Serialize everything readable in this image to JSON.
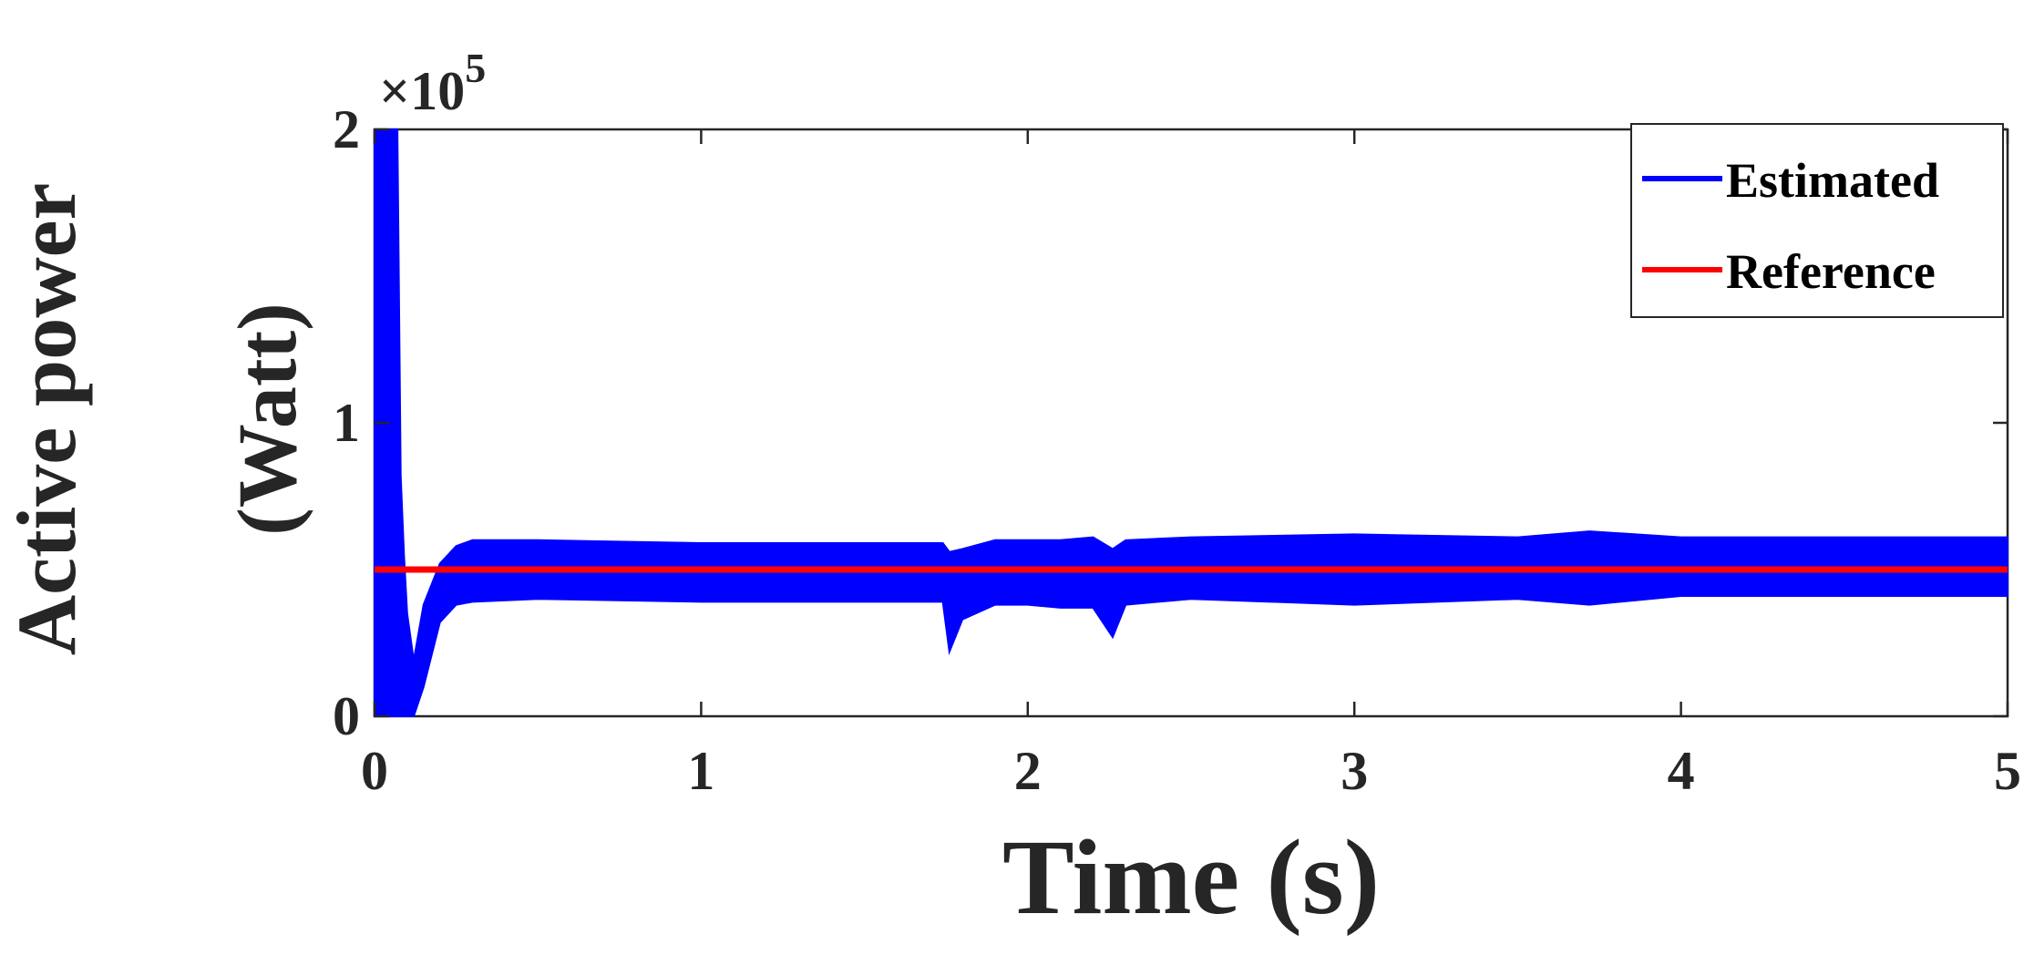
{
  "chart_data": {
    "type": "line",
    "xlabel": "Time (s)",
    "ylabel_lines": [
      "Active power",
      "(Watt)"
    ],
    "y_exponent_label": "×10",
    "y_exponent_power": "5",
    "xlim": [
      0,
      5
    ],
    "ylim": [
      0,
      2
    ],
    "x_ticks": [
      0,
      1,
      2,
      3,
      4,
      5
    ],
    "x_tick_labels": [
      "0",
      "1",
      "2",
      "3",
      "4",
      "5"
    ],
    "y_ticks": [
      0,
      1,
      2
    ],
    "y_tick_labels": [
      "0",
      "1",
      "2"
    ],
    "grid": false,
    "legend_position": "top-right",
    "series": [
      {
        "name": "Estimated",
        "color": "#0000FF",
        "band_note": "oscillating signal shown as band",
        "x": [
          0,
          0.01,
          0.03,
          0.05,
          0.07,
          0.08,
          0.09,
          0.1,
          0.12,
          0.15,
          0.2,
          0.25,
          0.3,
          0.5,
          1.0,
          1.5,
          1.74,
          1.76,
          1.8,
          1.9,
          2.0,
          2.1,
          2.2,
          2.26,
          2.3,
          2.5,
          3.0,
          3.5,
          3.72,
          4.0,
          4.5,
          5.0
        ],
        "upper": [
          2.0,
          2.0,
          2.0,
          2.0,
          2.0,
          0.82,
          0.55,
          0.35,
          0.19,
          0.38,
          0.52,
          0.58,
          0.6,
          0.6,
          0.59,
          0.59,
          0.59,
          0.56,
          0.57,
          0.6,
          0.6,
          0.6,
          0.61,
          0.57,
          0.6,
          0.61,
          0.62,
          0.61,
          0.63,
          0.61,
          0.61,
          0.61
        ],
        "lower": [
          0.0,
          0.0,
          0.0,
          0.0,
          0.0,
          0.0,
          0.0,
          0.0,
          0.0,
          0.1,
          0.32,
          0.38,
          0.39,
          0.4,
          0.39,
          0.39,
          0.39,
          0.22,
          0.33,
          0.38,
          0.38,
          0.37,
          0.37,
          0.27,
          0.38,
          0.4,
          0.38,
          0.4,
          0.38,
          0.41,
          0.41,
          0.41
        ]
      },
      {
        "name": "Reference",
        "color": "#FF0000",
        "x": [
          0,
          5
        ],
        "y": [
          0.5,
          0.5
        ]
      }
    ]
  }
}
